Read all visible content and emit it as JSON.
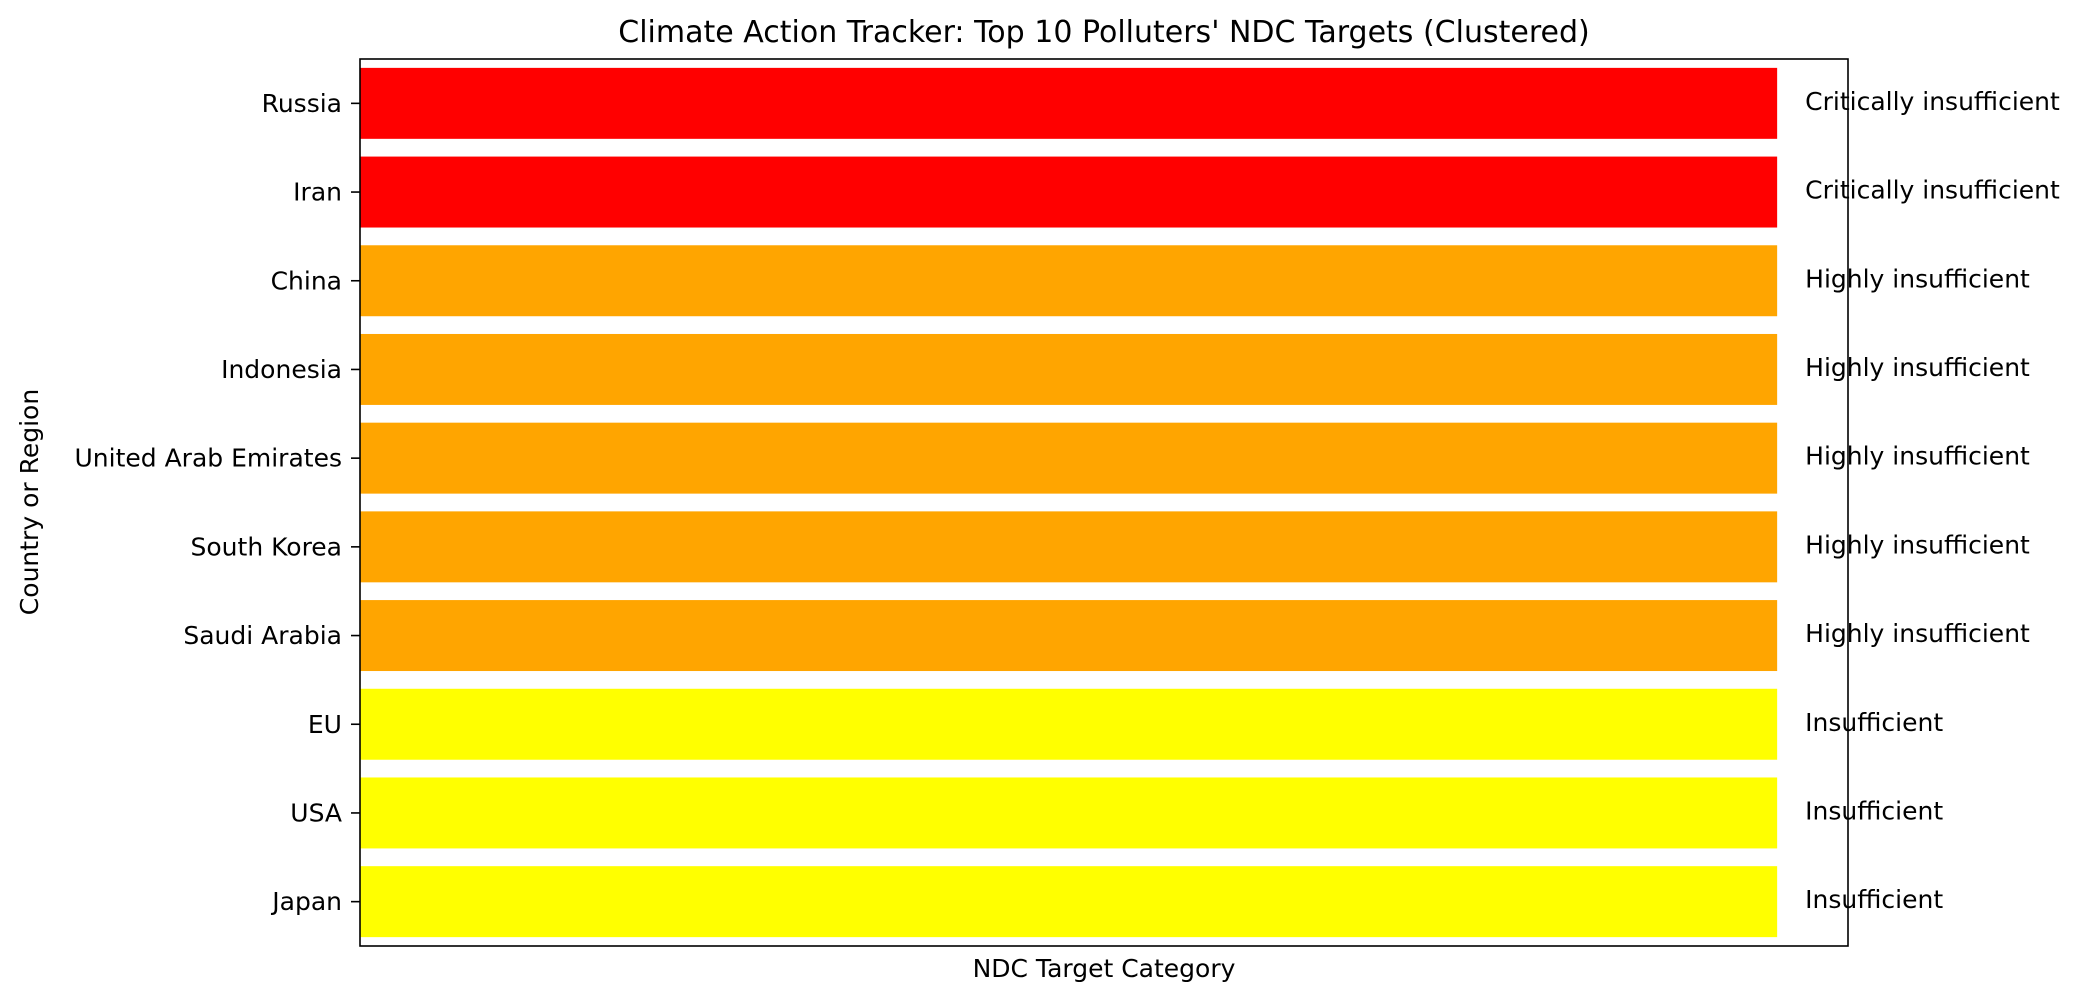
{
  "chart_data": {
    "type": "bar",
    "orientation": "horizontal",
    "title": "Climate Action Tracker: Top 10 Polluters' NDC Targets (Clustered)",
    "xlabel": "NDC Target Category",
    "ylabel": "Country or Region",
    "categories": [
      "Russia",
      "Iran",
      "China",
      "Indonesia",
      "United Arab Emirates",
      "South Korea",
      "Saudi Arabia",
      "EU",
      "USA",
      "Japan"
    ],
    "values": [
      1,
      1,
      1,
      1,
      1,
      1,
      1,
      1,
      1,
      1
    ],
    "bar_labels": [
      "Critically insufficient",
      "Critically insufficient",
      "Highly insufficient",
      "Highly insufficient",
      "Highly insufficient",
      "Highly insufficient",
      "Highly insufficient",
      "Insufficient",
      "Insufficient",
      "Insufficient"
    ],
    "bar_colors": [
      "#ff0000",
      "#ff0000",
      "#ffa500",
      "#ffa500",
      "#ffa500",
      "#ffa500",
      "#ffa500",
      "#ffff00",
      "#ffff00",
      "#ffff00"
    ],
    "xlim": [
      0,
      1.05
    ],
    "grid": false,
    "x_ticks_visible": false
  }
}
